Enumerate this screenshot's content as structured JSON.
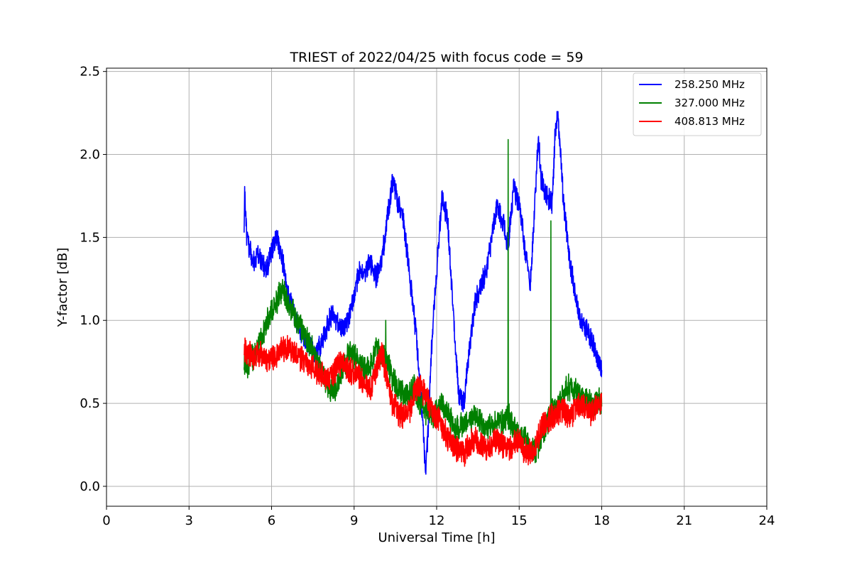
{
  "chart_data": {
    "type": "line",
    "title": "TRIEST of 2022/04/25 with focus code = 59",
    "xlabel": "Universal Time [h]",
    "ylabel": "Y-factor [dB]",
    "xlim": [
      0,
      24
    ],
    "ylim": [
      -0.12,
      2.52
    ],
    "xticks": [
      0,
      3,
      6,
      9,
      12,
      15,
      18,
      21,
      24
    ],
    "yticks": [
      0.0,
      0.5,
      1.0,
      1.5,
      2.0,
      2.5
    ],
    "xtick_labels": [
      "0",
      "3",
      "6",
      "9",
      "12",
      "15",
      "18",
      "21",
      "24"
    ],
    "ytick_labels": [
      "0.0",
      "0.5",
      "1.0",
      "1.5",
      "2.0",
      "2.5"
    ],
    "grid": true,
    "legend_position": "top-right",
    "series": [
      {
        "name": "258.250 MHz",
        "color": "#0000ff",
        "noise": 0.06,
        "x": [
          5.0,
          5.02,
          5.1,
          5.3,
          5.5,
          5.8,
          6.0,
          6.2,
          6.4,
          6.6,
          6.8,
          7.0,
          7.2,
          7.4,
          7.6,
          7.8,
          8.0,
          8.2,
          8.5,
          8.8,
          9.0,
          9.2,
          9.4,
          9.6,
          9.8,
          10.0,
          10.2,
          10.4,
          10.6,
          10.8,
          11.0,
          11.2,
          11.4,
          11.6,
          11.7,
          11.8,
          12.0,
          12.2,
          12.4,
          12.6,
          12.8,
          13.0,
          13.2,
          13.4,
          13.6,
          13.8,
          14.0,
          14.2,
          14.4,
          14.6,
          14.8,
          15.0,
          15.2,
          15.4,
          15.6,
          15.7,
          15.8,
          16.0,
          16.2,
          16.3,
          16.4,
          16.6,
          16.8,
          17.0,
          17.2,
          17.4,
          17.6,
          17.8,
          18.0
        ],
        "y": [
          1.55,
          1.78,
          1.5,
          1.35,
          1.4,
          1.3,
          1.42,
          1.5,
          1.35,
          1.15,
          1.05,
          0.95,
          0.88,
          0.85,
          0.8,
          0.85,
          0.95,
          1.05,
          0.95,
          1.0,
          1.15,
          1.3,
          1.3,
          1.35,
          1.25,
          1.35,
          1.6,
          1.85,
          1.7,
          1.6,
          1.3,
          1.0,
          0.65,
          0.1,
          0.35,
          0.8,
          1.3,
          1.75,
          1.6,
          1.05,
          0.55,
          0.5,
          0.85,
          1.1,
          1.2,
          1.3,
          1.5,
          1.7,
          1.6,
          1.45,
          1.8,
          1.7,
          1.45,
          1.2,
          1.8,
          2.1,
          1.85,
          1.75,
          1.7,
          2.1,
          2.25,
          1.75,
          1.4,
          1.2,
          1.0,
          0.95,
          0.9,
          0.8,
          0.7
        ]
      },
      {
        "name": "327.000 MHz",
        "color": "#008000",
        "noise": 0.07,
        "x": [
          5.0,
          5.2,
          5.4,
          5.6,
          5.8,
          6.0,
          6.2,
          6.4,
          6.6,
          6.8,
          7.0,
          7.2,
          7.4,
          7.6,
          7.8,
          8.0,
          8.2,
          8.4,
          8.6,
          8.8,
          9.0,
          9.2,
          9.4,
          9.6,
          9.8,
          10.0,
          10.2,
          10.4,
          10.6,
          10.8,
          11.0,
          11.2,
          11.4,
          11.6,
          11.8,
          12.0,
          12.2,
          12.4,
          12.6,
          12.8,
          13.0,
          13.2,
          13.4,
          13.6,
          13.8,
          14.0,
          14.2,
          14.4,
          14.6,
          14.8,
          15.0,
          15.2,
          15.4,
          15.6,
          15.8,
          16.0,
          16.2,
          16.4,
          16.6,
          16.8,
          17.0,
          17.2,
          17.4,
          17.6,
          17.8,
          18.0
        ],
        "y": [
          0.72,
          0.75,
          0.8,
          0.88,
          0.98,
          1.05,
          1.12,
          1.2,
          1.1,
          1.05,
          0.98,
          0.92,
          0.85,
          0.78,
          0.7,
          0.62,
          0.58,
          0.6,
          0.72,
          0.8,
          0.78,
          0.72,
          0.7,
          0.72,
          0.85,
          0.8,
          0.75,
          0.65,
          0.6,
          0.55,
          0.55,
          0.6,
          0.5,
          0.45,
          0.42,
          0.45,
          0.5,
          0.45,
          0.35,
          0.35,
          0.38,
          0.4,
          0.42,
          0.38,
          0.35,
          0.38,
          0.4,
          0.38,
          0.42,
          0.35,
          0.32,
          0.3,
          0.25,
          0.22,
          0.3,
          0.38,
          0.45,
          0.5,
          0.55,
          0.6,
          0.58,
          0.55,
          0.52,
          0.5,
          0.5,
          0.52
        ],
        "spikes": [
          [
            10.15,
            1.0
          ],
          [
            14.6,
            2.09
          ],
          [
            16.15,
            1.6
          ]
        ]
      },
      {
        "name": "408.813 MHz",
        "color": "#ff0000",
        "noise": 0.07,
        "x": [
          5.0,
          5.2,
          5.4,
          5.6,
          5.8,
          6.0,
          6.2,
          6.4,
          6.6,
          6.8,
          7.0,
          7.2,
          7.4,
          7.6,
          7.8,
          8.0,
          8.2,
          8.4,
          8.6,
          8.8,
          9.0,
          9.2,
          9.4,
          9.6,
          9.8,
          10.0,
          10.2,
          10.4,
          10.6,
          10.8,
          11.0,
          11.2,
          11.4,
          11.6,
          11.8,
          12.0,
          12.2,
          12.4,
          12.6,
          12.8,
          13.0,
          13.2,
          13.4,
          13.6,
          13.8,
          14.0,
          14.2,
          14.4,
          14.6,
          14.8,
          15.0,
          15.2,
          15.4,
          15.6,
          15.8,
          16.0,
          16.2,
          16.4,
          16.6,
          16.8,
          17.0,
          17.2,
          17.4,
          17.6,
          17.8,
          18.0
        ],
        "y": [
          0.82,
          0.8,
          0.78,
          0.8,
          0.75,
          0.78,
          0.8,
          0.82,
          0.85,
          0.8,
          0.78,
          0.75,
          0.72,
          0.7,
          0.68,
          0.65,
          0.68,
          0.72,
          0.75,
          0.7,
          0.68,
          0.65,
          0.62,
          0.58,
          0.7,
          0.82,
          0.65,
          0.5,
          0.45,
          0.42,
          0.45,
          0.55,
          0.6,
          0.55,
          0.48,
          0.42,
          0.35,
          0.3,
          0.25,
          0.22,
          0.2,
          0.25,
          0.28,
          0.25,
          0.22,
          0.25,
          0.28,
          0.25,
          0.22,
          0.25,
          0.28,
          0.22,
          0.2,
          0.25,
          0.35,
          0.4,
          0.42,
          0.45,
          0.45,
          0.42,
          0.45,
          0.5,
          0.48,
          0.45,
          0.48,
          0.5
        ]
      }
    ]
  }
}
